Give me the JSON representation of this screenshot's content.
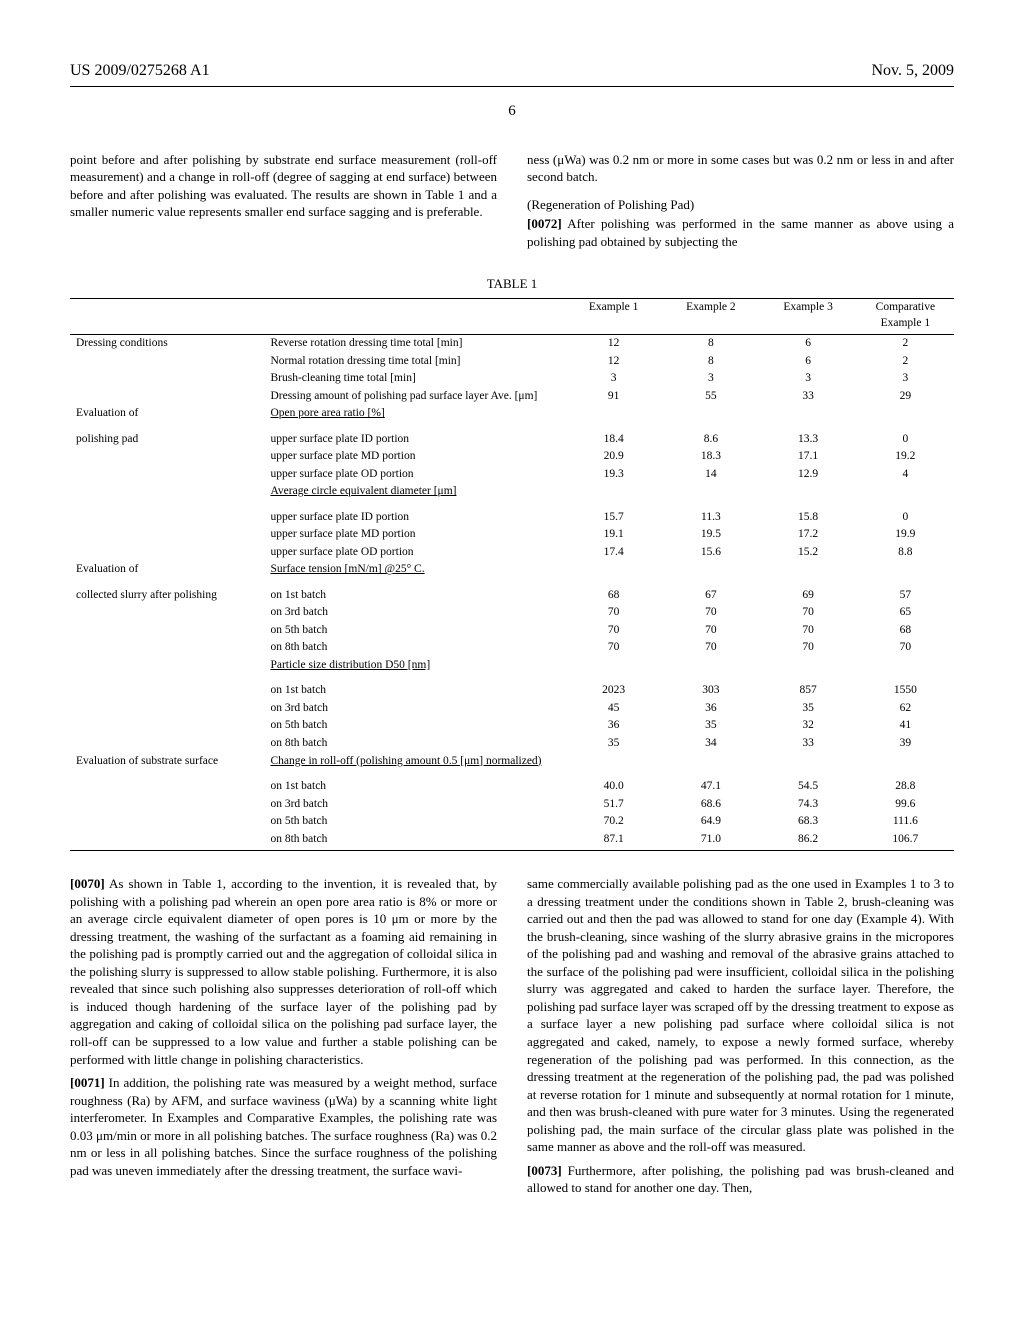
{
  "header": {
    "patent_no": "US 2009/0275268 A1",
    "date": "Nov. 5, 2009",
    "page_number": "6"
  },
  "top_cols": {
    "left": "point before and after polishing by substrate end surface measurement (roll-off measurement) and a change in roll-off (degree of sagging at end surface) between before and after polishing was evaluated. The results are shown in Table 1 and a smaller numeric value represents smaller end surface sagging and is preferable.",
    "right_p1": "ness (μWa) was 0.2 nm or more in some cases but was 0.2 nm or less in and after second batch.",
    "right_heading": "(Regeneration of Polishing Pad)",
    "right_p2_num": "[0072]",
    "right_p2": " After polishing was performed in the same manner as above using a polishing pad obtained by subjecting the"
  },
  "table1": {
    "caption": "TABLE 1",
    "col_headers": [
      "Example 1",
      "Example 2",
      "Example 3",
      "Comparative\nExample 1"
    ],
    "groups": [
      {
        "group_label": "Dressing conditions",
        "rows": [
          {
            "label": "Reverse rotation dressing time total [min]",
            "vals": [
              "12",
              "8",
              "6",
              "2"
            ]
          },
          {
            "label": "Normal rotation dressing time total [min]",
            "vals": [
              "12",
              "8",
              "6",
              "2"
            ]
          },
          {
            "label": "Brush-cleaning time total [min]",
            "vals": [
              "3",
              "3",
              "3",
              "3"
            ]
          },
          {
            "label": "Dressing amount of polishing pad surface layer Ave. [μm]",
            "vals": [
              "91",
              "55",
              "33",
              "29"
            ]
          }
        ]
      },
      {
        "group_label": "Evaluation of",
        "group_label2": "polishing pad",
        "subhead": "Open pore area ratio [%]",
        "rows": [
          {
            "label": "upper surface plate ID portion",
            "vals": [
              "18.4",
              "8.6",
              "13.3",
              "0"
            ]
          },
          {
            "label": "upper surface plate MD portion",
            "vals": [
              "20.9",
              "18.3",
              "17.1",
              "19.2"
            ]
          },
          {
            "label": "upper surface plate OD portion",
            "vals": [
              "19.3",
              "14",
              "12.9",
              "4"
            ]
          }
        ],
        "subhead2": "Average circle equivalent diameter [μm]",
        "rows2": [
          {
            "label": "upper surface plate ID portion",
            "vals": [
              "15.7",
              "11.3",
              "15.8",
              "0"
            ]
          },
          {
            "label": "upper surface plate MD portion",
            "vals": [
              "19.1",
              "19.5",
              "17.2",
              "19.9"
            ]
          },
          {
            "label": "upper surface plate OD portion",
            "vals": [
              "17.4",
              "15.6",
              "15.2",
              "8.8"
            ]
          }
        ]
      },
      {
        "group_label": "Evaluation of",
        "group_label2": "collected slurry after polishing",
        "subhead": "Surface tension [mN/m] @25° C.",
        "rows": [
          {
            "label": "on 1st batch",
            "vals": [
              "68",
              "67",
              "69",
              "57"
            ]
          },
          {
            "label": "on 3rd batch",
            "vals": [
              "70",
              "70",
              "70",
              "65"
            ]
          },
          {
            "label": "on 5th batch",
            "vals": [
              "70",
              "70",
              "70",
              "68"
            ]
          },
          {
            "label": "on 8th batch",
            "vals": [
              "70",
              "70",
              "70",
              "70"
            ]
          }
        ],
        "subhead2": "Particle size distribution D50 [nm]",
        "rows2": [
          {
            "label": "on 1st batch",
            "vals": [
              "2023",
              "303",
              "857",
              "1550"
            ]
          },
          {
            "label": "on 3rd batch",
            "vals": [
              "45",
              "36",
              "35",
              "62"
            ]
          },
          {
            "label": "on 5th batch",
            "vals": [
              "36",
              "35",
              "32",
              "41"
            ]
          },
          {
            "label": "on 8th batch",
            "vals": [
              "35",
              "34",
              "33",
              "39"
            ]
          }
        ]
      },
      {
        "group_label": "Evaluation of substrate surface",
        "subhead": "Change in roll-off (polishing amount 0.5 [μm] normalized)",
        "rows": [
          {
            "label": "on 1st batch",
            "vals": [
              "40.0",
              "47.1",
              "54.5",
              "28.8"
            ]
          },
          {
            "label": "on 3rd batch",
            "vals": [
              "51.7",
              "68.6",
              "74.3",
              "99.6"
            ]
          },
          {
            "label": "on 5th batch",
            "vals": [
              "70.2",
              "64.9",
              "68.3",
              "111.6"
            ]
          },
          {
            "label": "on 8th batch",
            "vals": [
              "87.1",
              "71.0",
              "86.2",
              "106.7"
            ]
          }
        ]
      }
    ]
  },
  "bottom_cols": {
    "left_p1_num": "[0070]",
    "left_p1": " As shown in Table 1, according to the invention, it is revealed that, by polishing with a polishing pad wherein an open pore area ratio is 8% or more or an average circle equivalent diameter of open pores is 10 μm or more by the dressing treatment, the washing of the surfactant as a foaming aid remaining in the polishing pad is promptly carried out and the aggregation of colloidal silica in the polishing slurry is suppressed to allow stable polishing. Furthermore, it is also revealed that since such polishing also suppresses deterioration of roll-off which is induced though hardening of the surface layer of the polishing pad by aggregation and caking of colloidal silica on the polishing pad surface layer, the roll-off can be suppressed to a low value and further a stable polishing can be performed with little change in polishing characteristics.",
    "left_p2_num": "[0071]",
    "left_p2": " In addition, the polishing rate was measured by a weight method, surface roughness (Ra) by AFM, and surface waviness (μWa) by a scanning white light interferometer. In Examples and Comparative Examples, the polishing rate was 0.03 μm/min or more in all polishing batches. The surface roughness (Ra) was 0.2 nm or less in all polishing batches. Since the surface roughness of the polishing pad was uneven immediately after the dressing treatment, the surface wavi-",
    "right_p1": "same commercially available polishing pad as the one used in Examples 1 to 3 to a dressing treatment under the conditions shown in Table 2, brush-cleaning was carried out and then the pad was allowed to stand for one day (Example 4). With the brush-cleaning, since washing of the slurry abrasive grains in the micropores of the polishing pad and washing and removal of the abrasive grains attached to the surface of the polishing pad were insufficient, colloidal silica in the polishing slurry was aggregated and caked to harden the surface layer. Therefore, the polishing pad surface layer was scraped off by the dressing treatment to expose as a surface layer a new polishing pad surface where colloidal silica is not aggregated and caked, namely, to expose a newly formed surface, whereby regeneration of the polishing pad was performed. In this connection, as the dressing treatment at the regeneration of the polishing pad, the pad was polished at reverse rotation for 1 minute and subsequently at normal rotation for 1 minute, and then was brush-cleaned with pure water for 3 minutes. Using the regenerated polishing pad, the main surface of the circular glass plate was polished in the same manner as above and the roll-off was measured.",
    "right_p2_num": "[0073]",
    "right_p2": " Furthermore, after polishing, the polishing pad was brush-cleaned and allowed to stand for another one day. Then,"
  }
}
